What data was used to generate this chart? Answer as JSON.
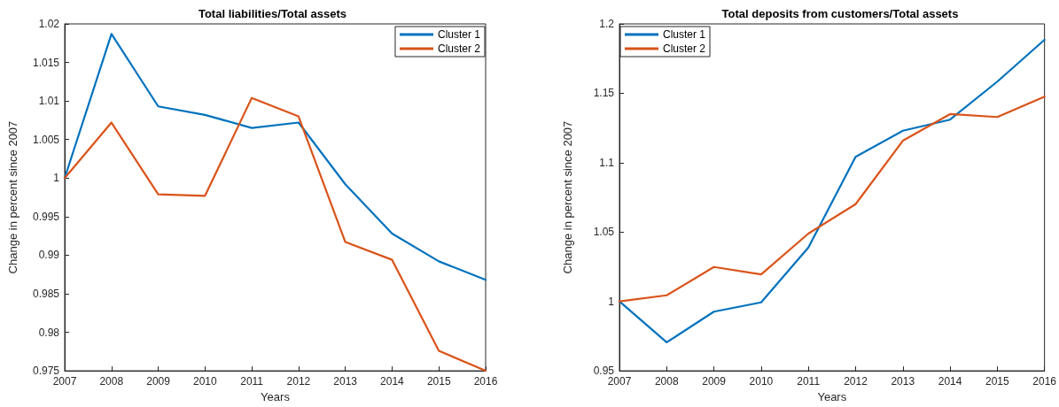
{
  "chart_data": [
    {
      "type": "line",
      "title": "Total liabilities/Total assets",
      "xlabel": "Years",
      "ylabel": "Change in percent since 2007",
      "x": [
        2007,
        2008,
        2009,
        2010,
        2011,
        2012,
        2013,
        2014,
        2015,
        2016
      ],
      "series": [
        {
          "name": "Cluster 1",
          "color": "#0072bd",
          "values": [
            1.0,
            1.0187,
            1.0093,
            1.0082,
            1.0065,
            1.0072,
            0.9992,
            0.9928,
            0.9892,
            0.9868
          ]
        },
        {
          "name": "Cluster 2",
          "color": "#d95319",
          "values": [
            1.0,
            1.0072,
            0.9979,
            0.9977,
            1.0104,
            1.008,
            0.9917,
            0.9894,
            0.9776,
            0.975
          ]
        }
      ],
      "xlim": [
        2007,
        2016
      ],
      "xticks": [
        2007,
        2008,
        2009,
        2010,
        2011,
        2012,
        2013,
        2014,
        2015,
        2016
      ],
      "ylim": [
        0.975,
        1.02
      ],
      "yticks": [
        0.975,
        0.98,
        0.985,
        0.99,
        0.995,
        1,
        1.005,
        1.01,
        1.015,
        1.02
      ],
      "grid": false,
      "legend": "top right",
      "marker": "none",
      "line_style": "solid"
    },
    {
      "type": "line",
      "title": "Total deposits from customers/Total assets",
      "xlabel": "Years",
      "ylabel": "Change in percent since 2007",
      "x": [
        2007,
        2008,
        2009,
        2010,
        2011,
        2012,
        2013,
        2014,
        2015,
        2016
      ],
      "series": [
        {
          "name": "Cluster 1",
          "color": "#0072bd",
          "values": [
            1.0,
            0.9705,
            0.9926,
            0.9993,
            1.0388,
            1.1042,
            1.123,
            1.131,
            1.1584,
            1.1885
          ]
        },
        {
          "name": "Cluster 2",
          "color": "#d95319",
          "values": [
            1.0,
            1.0044,
            1.0248,
            1.0195,
            1.0489,
            1.0701,
            1.1158,
            1.135,
            1.1329,
            1.1476
          ]
        }
      ],
      "xlim": [
        2007,
        2016
      ],
      "xticks": [
        2007,
        2008,
        2009,
        2010,
        2011,
        2012,
        2013,
        2014,
        2015,
        2016
      ],
      "ylim": [
        0.95,
        1.2
      ],
      "yticks": [
        0.95,
        1,
        1.05,
        1.1,
        1.15,
        1.2
      ],
      "grid": false,
      "legend": "top left",
      "marker": "none",
      "line_style": "solid"
    }
  ]
}
